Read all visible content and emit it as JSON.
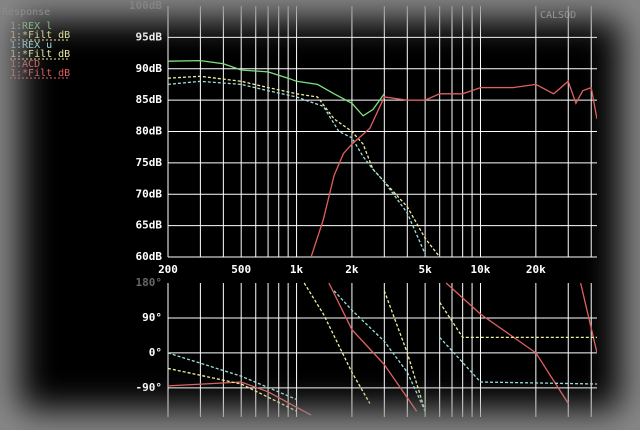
{
  "chart_data": [
    {
      "type": "line",
      "title": "Response",
      "annotation": "CALSOD",
      "xscale": "log",
      "xlim": [
        200,
        43000
      ],
      "ylim": [
        60,
        100
      ],
      "xticks": [
        200,
        500,
        {
          "value": 1000,
          "label": "1k"
        },
        {
          "value": 2000,
          "label": "2k"
        },
        {
          "value": 5000,
          "label": "5k"
        },
        {
          "value": 10000,
          "label": "10k"
        },
        {
          "value": 20000,
          "label": "20k"
        }
      ],
      "xminor": [
        300,
        400,
        600,
        700,
        800,
        900,
        3000,
        4000,
        6000,
        7000,
        8000,
        9000,
        30000,
        40000
      ],
      "yticks": [
        {
          "value": 60,
          "label": "60dB"
        },
        {
          "value": 65,
          "label": "65dB"
        },
        {
          "value": 70,
          "label": "70dB"
        },
        {
          "value": 75,
          "label": "75dB"
        },
        {
          "value": 80,
          "label": "80dB"
        },
        {
          "value": 85,
          "label": "85dB"
        },
        {
          "value": 90,
          "label": "90dB"
        },
        {
          "value": 95,
          "label": "95dB"
        },
        {
          "value": 100,
          "label": "100dB"
        }
      ],
      "grid": true,
      "legend": [
        {
          "text": "1:REX l",
          "color": "#7fe07f"
        },
        {
          "text": "1:*Filt dB",
          "color": "#f0f0a0"
        },
        {
          "text": "1:REX u",
          "color": "#a0e0e0"
        },
        {
          "text": "1:*Filt dB",
          "color": "#f0f0a0"
        },
        {
          "text": "1:ACD",
          "color": "#e06060"
        },
        {
          "text": "1:*Filt dB",
          "color": "#e06060"
        }
      ],
      "series": [
        {
          "color": "#7fe07f",
          "dash": false,
          "x": [
            200,
            300,
            400,
            500,
            700,
            900,
            1000,
            1300,
            1600,
            2000,
            2300,
            2600,
            3000
          ],
          "values": [
            91.2,
            91.3,
            90.8,
            89.8,
            89.5,
            88.5,
            88,
            87.5,
            86,
            84.5,
            82.5,
            83.5,
            86
          ]
        },
        {
          "color": "#f0f0a0",
          "dash": true,
          "x": [
            200,
            300,
            500,
            700,
            1000,
            1300,
            1600,
            2000,
            2300,
            2600,
            3000,
            4000,
            5000,
            6000
          ],
          "values": [
            88.5,
            88.8,
            88,
            87,
            86,
            85.5,
            82,
            80,
            78,
            74,
            72,
            68,
            63,
            60
          ]
        },
        {
          "color": "#a0e0e0",
          "dash": true,
          "x": [
            200,
            300,
            500,
            700,
            1000,
            1400,
            1700,
            2000,
            2300,
            2600,
            3000,
            4000,
            5000
          ],
          "values": [
            87.5,
            88,
            87.5,
            86.5,
            85.5,
            84,
            80,
            79,
            76,
            74,
            72,
            67,
            60.5
          ]
        },
        {
          "color": "#e06060",
          "dash": false,
          "x": [
            1200,
            1400,
            1600,
            1800,
            2000,
            2500,
            3000,
            4000,
            5000,
            6000,
            8000,
            10000,
            15000,
            20000,
            25000,
            30000,
            33000,
            36000,
            40000,
            43000
          ],
          "values": [
            60,
            66,
            73,
            76.5,
            78,
            80.5,
            85.5,
            85,
            85,
            86,
            86,
            87,
            87,
            87.5,
            86,
            88,
            84.5,
            86.5,
            87,
            82
          ]
        }
      ]
    },
    {
      "type": "line",
      "xscale": "log",
      "xlim": [
        200,
        43000
      ],
      "ylim": [
        -165,
        180
      ],
      "yticks": [
        {
          "value": -90,
          "label": "-90°"
        },
        {
          "value": 0,
          "label": "0°"
        },
        {
          "value": 90,
          "label": "90°"
        },
        {
          "value": 180,
          "label": "180°"
        }
      ],
      "grid": true,
      "series": [
        {
          "color": "#e06060",
          "dash": false,
          "x": [
            200,
            500,
            700,
            1000,
            1200,
            1300,
            1500,
            2000,
            3000,
            4500,
            5500,
            6500,
            10000,
            20000,
            30000,
            33000,
            35000,
            43000
          ],
          "values": [
            -85,
            -75,
            -100,
            -140,
            -160,
            null,
            180,
            60,
            -30,
            -150,
            null,
            180,
            100,
            0,
            -130,
            null,
            180,
            0
          ]
        },
        {
          "color": "#f0f0a0",
          "dash": true,
          "x": [
            200,
            500,
            1000,
            1050,
            1100,
            1400,
            2000,
            2500,
            2700,
            3000,
            4000,
            5000,
            5500,
            6000,
            8000,
            10000,
            43000
          ],
          "values": [
            -40,
            -80,
            -150,
            null,
            180,
            100,
            -50,
            -130,
            null,
            160,
            0,
            -150,
            null,
            130,
            40,
            40,
            40
          ]
        },
        {
          "color": "#a0e0e0",
          "dash": true,
          "x": [
            200,
            500,
            1000,
            1300,
            1600,
            2000,
            3000,
            4000,
            5000,
            5500,
            6000,
            10000,
            43000
          ],
          "values": [
            0,
            -60,
            -120,
            null,
            160,
            110,
            30,
            -50,
            -150,
            null,
            40,
            -75,
            -80
          ]
        }
      ]
    }
  ]
}
